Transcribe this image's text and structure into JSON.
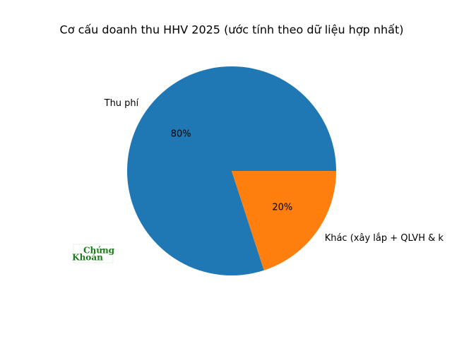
{
  "chart_data": {
    "type": "pie",
    "title": "Cơ cấu doanh thu HHV 2025 (ước tính theo dữ liệu hợp nhất)",
    "categories": [
      "Thu phí",
      "Khác (xây lắp + QLVH & k"
    ],
    "values": [
      80,
      20
    ],
    "value_labels": [
      "80%",
      "20%"
    ],
    "colors": [
      "#1f77b4",
      "#ff7f0e"
    ],
    "watermark": [
      "Chứng",
      "Khoán"
    ]
  }
}
